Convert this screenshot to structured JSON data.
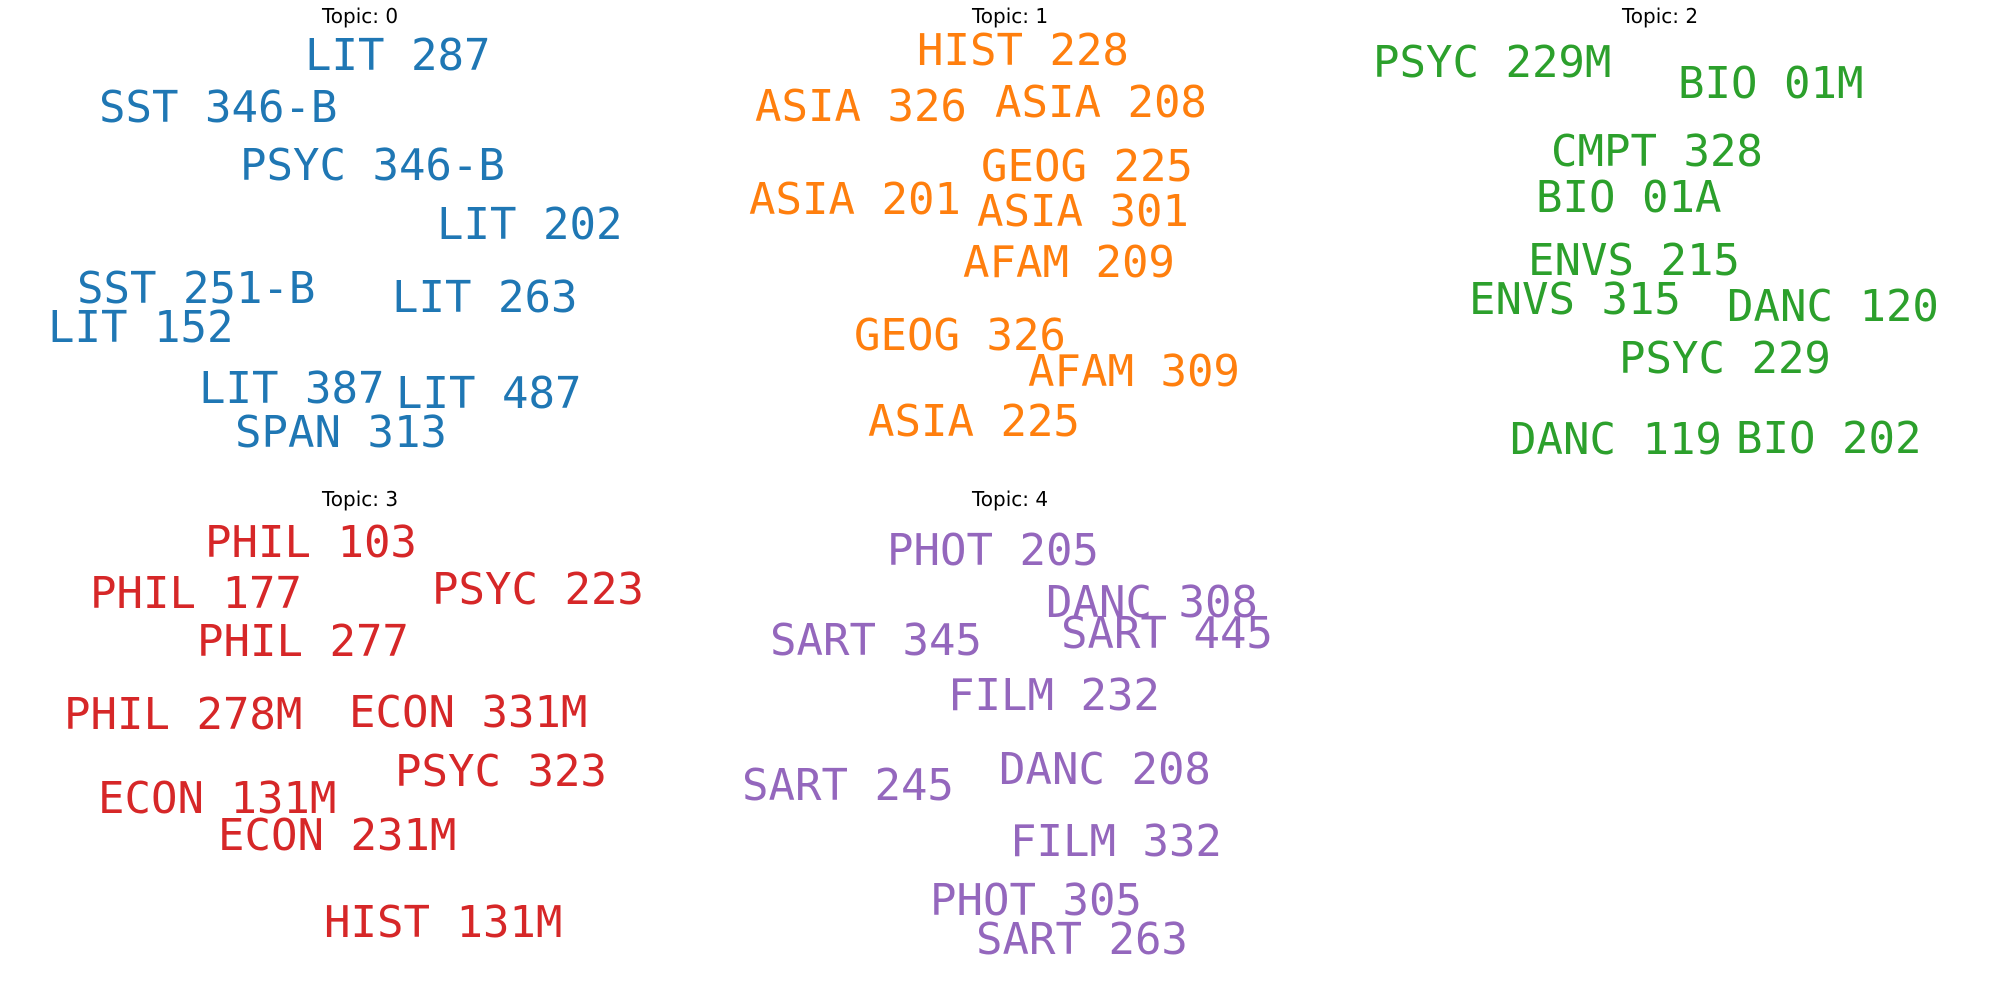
{
  "chart_data": [
    {
      "type": "wordcloud",
      "title": "Topic: 0",
      "color": "#1f77b4",
      "words": [
        "LIT 287",
        "SST 346-B",
        "PSYC 346-B",
        "LIT 202",
        "SST 251-B",
        "LIT 263",
        "LIT 152",
        "LIT 387",
        "LIT 487",
        "SPAN 313"
      ]
    },
    {
      "type": "wordcloud",
      "title": "Topic: 1",
      "color": "#ff7f0e",
      "words": [
        "HIST 228",
        "ASIA 326",
        "ASIA 208",
        "GEOG 225",
        "ASIA 201",
        "ASIA 301",
        "AFAM 209",
        "GEOG 326",
        "AFAM 309",
        "ASIA 225"
      ]
    },
    {
      "type": "wordcloud",
      "title": "Topic: 2",
      "color": "#2ca02c",
      "words": [
        "PSYC 229M",
        "BIO 01M",
        "CMPT 328",
        "BIO 01A",
        "ENVS 215",
        "ENVS 315",
        "DANC 120",
        "PSYC 229",
        "DANC 119",
        "BIO 202"
      ]
    },
    {
      "type": "wordcloud",
      "title": "Topic: 3",
      "color": "#d62728",
      "words": [
        "PHIL 103",
        "PHIL 177",
        "PSYC 223",
        "PHIL 277",
        "PHIL 278M",
        "ECON 331M",
        "PSYC 323",
        "ECON 131M",
        "ECON 231M",
        "HIST 131M"
      ]
    },
    {
      "type": "wordcloud",
      "title": "Topic: 4",
      "color": "#9467bd",
      "words": [
        "PHOT 205",
        "DANC 308",
        "SART 345",
        "SART 445",
        "FILM 232",
        "DANC 208",
        "SART 245",
        "FILM 332",
        "PHOT 305",
        "SART 263"
      ]
    }
  ]
}
